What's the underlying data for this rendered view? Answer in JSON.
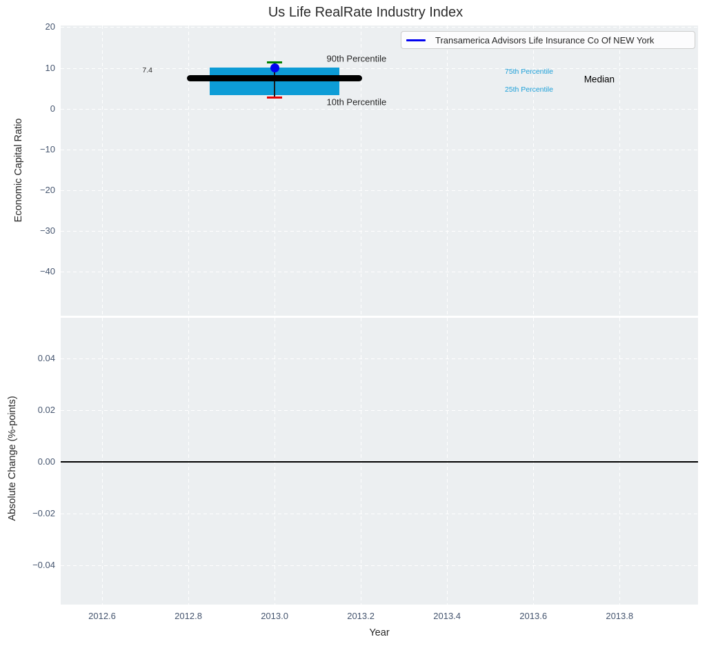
{
  "title": "Us Life RealRate Industry Index",
  "legend": {
    "label": "Transamerica Advisors Life Insurance Co Of NEW York",
    "series_color": "#0202f0"
  },
  "colors": {
    "axes_bg": "#eceff1",
    "grid": "#ffffff",
    "tick_text": "#44546e",
    "text": "#262626",
    "box_fill": "#0d9cd6",
    "median_line": "#000000",
    "whisker": "#1a1a1a",
    "p90_cap": "#008000",
    "p10_cap": "#e50000",
    "company_marker": "#0202f0",
    "zero_line": "#000000",
    "percentile_label": "#1b9fd8"
  },
  "chart_data": [
    {
      "type": "boxplot",
      "title": "Us Life RealRate Industry Index",
      "ylabel": "Economic Capital Ratio",
      "xlim": [
        2012.504,
        2013.982
      ],
      "ylim": [
        -50.9,
        20.42
      ],
      "grid": "white dashed",
      "legend_position": "upper right",
      "yticks": [
        {
          "v": 20,
          "label": "20"
        },
        {
          "v": 10,
          "label": "10"
        },
        {
          "v": 0,
          "label": "0"
        },
        {
          "v": -10,
          "label": "−10"
        },
        {
          "v": -20,
          "label": "−20"
        },
        {
          "v": -30,
          "label": "−30"
        },
        {
          "v": -40,
          "label": "−40"
        }
      ],
      "box": {
        "year": 2013.0,
        "median": 7.4,
        "median_label": "7.4",
        "p75": 10.1,
        "p25": 3.3,
        "p90": 11.4,
        "p10": 2.7,
        "company_value": 10.0,
        "box_halfwidth_years": 0.15,
        "median_halfwidth_years": 0.203,
        "cap_halfwidth_years": 0.018
      },
      "annotations": [
        {
          "text": "90th Percentile",
          "x": 2013.19,
          "y": 12.3,
          "color": "#262626",
          "size": 13
        },
        {
          "text": "10th Percentile",
          "x": 2013.19,
          "y": 1.6,
          "color": "#262626",
          "size": 13
        },
        {
          "text": "75th Percentile",
          "x": 2013.59,
          "y": 9.05,
          "color": "#1b9fd8",
          "size": 10.5
        },
        {
          "text": "25th Percentile",
          "x": 2013.59,
          "y": 4.6,
          "color": "#1b9fd8",
          "size": 10.5
        },
        {
          "text": "Median",
          "x": 2013.753,
          "y": 7.2,
          "color": "#000000",
          "size": 13.5
        },
        {
          "text": "7.4",
          "x": 2012.705,
          "y": 9.35,
          "color": "#262626",
          "size": 10.5
        }
      ]
    },
    {
      "type": "line",
      "ylabel": "Absolute Change (%-points)",
      "xlabel": "Year",
      "xlim": [
        2012.504,
        2013.982
      ],
      "ylim": [
        -0.0552,
        0.0557
      ],
      "grid": "white dashed",
      "zero_line_y": 0.0,
      "xticks": [
        {
          "v": 2012.6,
          "label": "2012.6"
        },
        {
          "v": 2012.8,
          "label": "2012.8"
        },
        {
          "v": 2013.0,
          "label": "2013.0"
        },
        {
          "v": 2013.2,
          "label": "2013.2"
        },
        {
          "v": 2013.4,
          "label": "2013.4"
        },
        {
          "v": 2013.6,
          "label": "2013.6"
        },
        {
          "v": 2013.8,
          "label": "2013.8"
        }
      ],
      "yticks": [
        {
          "v": 0.04,
          "label": "0.04"
        },
        {
          "v": 0.02,
          "label": "0.02"
        },
        {
          "v": 0.0,
          "label": "0.00"
        },
        {
          "v": -0.02,
          "label": "−0.02"
        },
        {
          "v": -0.04,
          "label": "−0.04"
        }
      ]
    }
  ]
}
